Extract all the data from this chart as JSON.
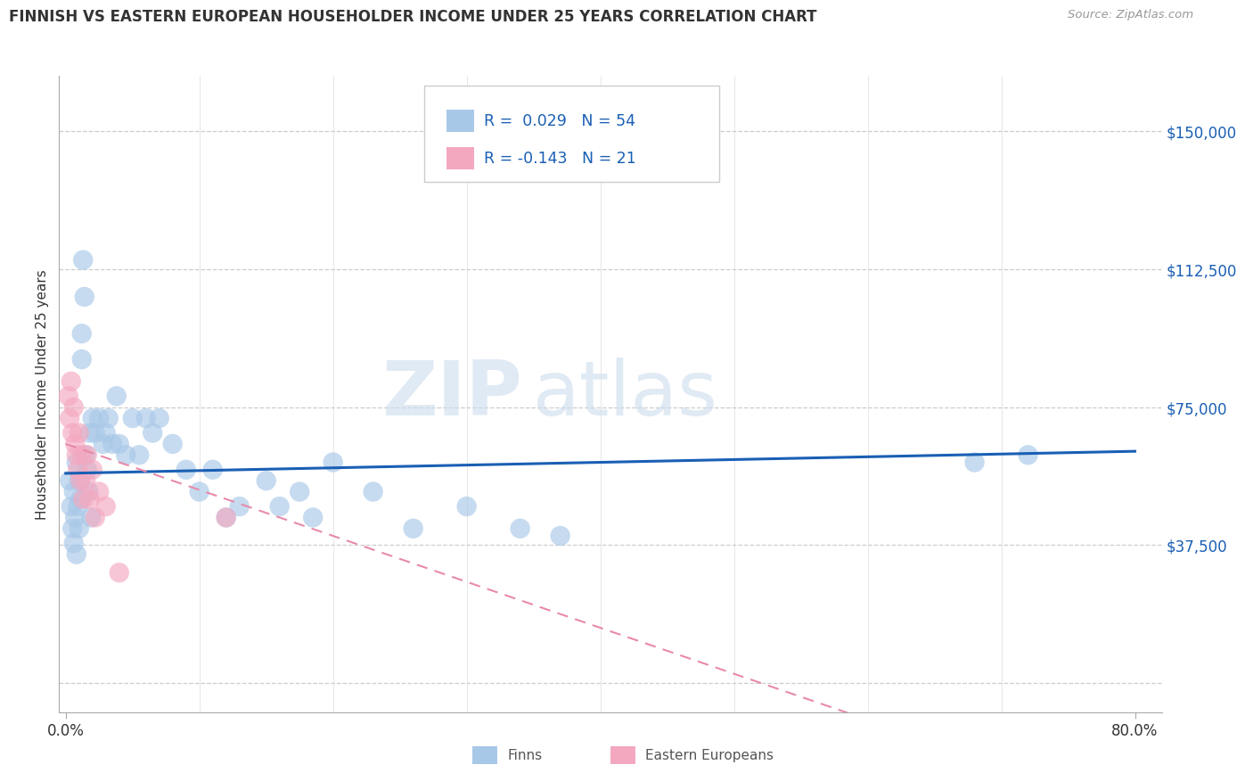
{
  "title": "FINNISH VS EASTERN EUROPEAN HOUSEHOLDER INCOME UNDER 25 YEARS CORRELATION CHART",
  "source": "Source: ZipAtlas.com",
  "ylabel": "Householder Income Under 25 years",
  "ytick_vals": [
    0,
    37500,
    75000,
    112500,
    150000
  ],
  "ytick_labels": [
    "",
    "$37,500",
    "$75,000",
    "$112,500",
    "$150,000"
  ],
  "xtick_vals": [
    0.0,
    0.8
  ],
  "xtick_labels": [
    "0.0%",
    "80.0%"
  ],
  "xlim": [
    -0.005,
    0.82
  ],
  "ylim": [
    -8000,
    165000
  ],
  "watermark_line1": "ZIP",
  "watermark_line2": "atlas",
  "finns_dot_color": "#a8c8e8",
  "eastern_dot_color": "#f4a8c0",
  "finns_line_color": "#1a5fb4",
  "eastern_line_color": "#e88aaa",
  "legend_text_color": "#1a5fb4",
  "finns_r": 0.029,
  "finns_n": 54,
  "eastern_r": -0.143,
  "eastern_n": 21,
  "finns_scatter_x": [
    0.003,
    0.004,
    0.005,
    0.006,
    0.006,
    0.007,
    0.008,
    0.008,
    0.009,
    0.01,
    0.01,
    0.011,
    0.012,
    0.012,
    0.013,
    0.014,
    0.015,
    0.016,
    0.017,
    0.018,
    0.019,
    0.02,
    0.022,
    0.025,
    0.028,
    0.03,
    0.032,
    0.035,
    0.038,
    0.04,
    0.045,
    0.05,
    0.055,
    0.06,
    0.065,
    0.07,
    0.08,
    0.09,
    0.1,
    0.11,
    0.12,
    0.13,
    0.15,
    0.16,
    0.175,
    0.185,
    0.2,
    0.23,
    0.26,
    0.3,
    0.34,
    0.37,
    0.68,
    0.72
  ],
  "finns_scatter_y": [
    55000,
    48000,
    42000,
    52000,
    38000,
    45000,
    60000,
    35000,
    48000,
    55000,
    42000,
    50000,
    95000,
    88000,
    115000,
    105000,
    62000,
    58000,
    52000,
    68000,
    45000,
    72000,
    68000,
    72000,
    65000,
    68000,
    72000,
    65000,
    78000,
    65000,
    62000,
    72000,
    62000,
    72000,
    68000,
    72000,
    65000,
    58000,
    52000,
    58000,
    45000,
    48000,
    55000,
    48000,
    52000,
    45000,
    60000,
    52000,
    42000,
    48000,
    42000,
    40000,
    60000,
    62000
  ],
  "eastern_scatter_x": [
    0.002,
    0.003,
    0.004,
    0.005,
    0.006,
    0.007,
    0.008,
    0.009,
    0.01,
    0.011,
    0.012,
    0.013,
    0.015,
    0.016,
    0.018,
    0.02,
    0.022,
    0.025,
    0.03,
    0.04,
    0.12
  ],
  "eastern_scatter_y": [
    78000,
    72000,
    82000,
    68000,
    75000,
    65000,
    62000,
    58000,
    68000,
    55000,
    62000,
    50000,
    55000,
    62000,
    50000,
    58000,
    45000,
    52000,
    48000,
    30000,
    45000
  ]
}
